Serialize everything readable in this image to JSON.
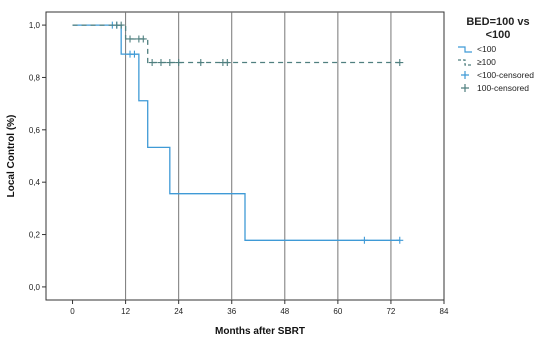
{
  "chart_data": {
    "type": "line",
    "subtype": "kaplan-meier",
    "xlabel": "Months after SBRT",
    "ylabel": "Local Control (%)",
    "xlim": [
      -6,
      84
    ],
    "ylim": [
      -0.05,
      1.05
    ],
    "xticks": [
      0,
      12,
      24,
      36,
      48,
      60,
      72,
      84
    ],
    "yticks": [
      0.0,
      0.2,
      0.4,
      0.6,
      0.8,
      1.0
    ],
    "ytick_labels": [
      "0,0",
      "0,2",
      "0,4",
      "0,6",
      "0,8",
      "1,0"
    ],
    "grid": "vertical",
    "legend": {
      "title": "BED=100 vs <100",
      "position": "right",
      "entries": [
        "<100",
        "≥100",
        "<100-censored",
        "100-censored"
      ]
    },
    "series": [
      {
        "name": "<100",
        "color": "#3f9ad6",
        "dash": "solid",
        "steps": [
          [
            0,
            1.0
          ],
          [
            11,
            0.889
          ],
          [
            15,
            0.711
          ],
          [
            17,
            0.533
          ],
          [
            22,
            0.356
          ],
          [
            39,
            0.178
          ],
          [
            74,
            0.178
          ]
        ],
        "censored": [
          [
            9,
            1.0
          ],
          [
            10,
            1.0
          ],
          [
            13,
            0.889
          ],
          [
            14,
            0.889
          ],
          [
            66,
            0.178
          ],
          [
            74,
            0.178
          ]
        ]
      },
      {
        "name": "≥100",
        "color": "#4f7f7f",
        "dash": "dashed",
        "steps": [
          [
            0,
            1.0
          ],
          [
            12,
            0.947
          ],
          [
            17,
            0.857
          ],
          [
            74,
            0.857
          ]
        ],
        "censored": [
          [
            10,
            1.0
          ],
          [
            11,
            1.0
          ],
          [
            13,
            0.947
          ],
          [
            15,
            0.947
          ],
          [
            16,
            0.947
          ],
          [
            18,
            0.857
          ],
          [
            20,
            0.857
          ],
          [
            22,
            0.857
          ],
          [
            24,
            0.857
          ],
          [
            29,
            0.857
          ],
          [
            34,
            0.857
          ],
          [
            35,
            0.857
          ],
          [
            74,
            0.857
          ]
        ]
      }
    ]
  }
}
